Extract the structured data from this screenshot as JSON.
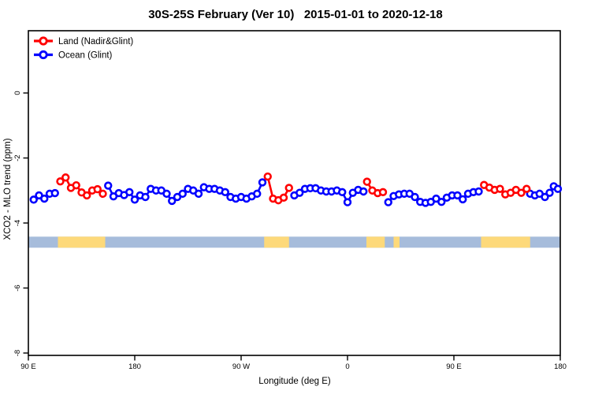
{
  "title": "30S-25S February (Ver 10)   2015-01-01 to 2020-12-18",
  "chart_data": {
    "type": "line",
    "title": "30S-25S February (Ver 10)   2015-01-01 to 2020-12-18",
    "xlabel": "Longitude (deg E)",
    "ylabel": "XCO2 - MLO trend (ppm)",
    "xlim": [
      90,
      540
    ],
    "ylim": [
      -8.2,
      1.9
    ],
    "grid": false,
    "legend_position": "top-left-inside",
    "x_ticks": [
      {
        "pos": 90,
        "label": "90 E"
      },
      {
        "pos": 180,
        "label": "180"
      },
      {
        "pos": 270,
        "label": "90 W"
      },
      {
        "pos": 360,
        "label": "0"
      },
      {
        "pos": 450,
        "label": "90 E"
      },
      {
        "pos": 540,
        "label": "180"
      }
    ],
    "y_ticks": [
      {
        "pos": 0,
        "label": "0"
      },
      {
        "pos": -2,
        "label": "-2"
      },
      {
        "pos": -4,
        "label": "-4"
      },
      {
        "pos": -6,
        "label": "-6"
      },
      {
        "pos": -8,
        "label": "-8"
      }
    ],
    "legend": [
      {
        "name": "Land (Nadir&Glint)",
        "color": "#ff0000"
      },
      {
        "name": "Ocean (Glint)",
        "color": "#0000ff"
      }
    ],
    "land_ocean_band": {
      "y_top": -4.42,
      "y_bottom": -4.76,
      "ocean_color": "#a6bcdb",
      "land_color": "#fdd97a",
      "land_segments_lon": [
        [
          115,
          155
        ],
        [
          289.5,
          310.5
        ],
        [
          376,
          391.5
        ],
        [
          399,
          404
        ],
        [
          473,
          514.5
        ]
      ]
    },
    "series": [
      {
        "name": "Ocean (Glint)",
        "color": "#0000ff",
        "marker": "open-circle",
        "segments": [
          [
            [
              94.5,
              -3.28
            ],
            [
              99,
              -3.15
            ],
            [
              103.5,
              -3.25
            ],
            [
              108,
              -3.1
            ],
            [
              112.5,
              -3.08
            ]
          ],
          [
            [
              157.5,
              -2.85
            ],
            [
              162,
              -3.18
            ],
            [
              166.5,
              -3.08
            ],
            [
              171,
              -3.14
            ],
            [
              175.5,
              -3.05
            ],
            [
              180,
              -3.28
            ],
            [
              184.5,
              -3.15
            ],
            [
              189,
              -3.2
            ],
            [
              193.5,
              -2.95
            ],
            [
              198,
              -3.0
            ],
            [
              202.5,
              -3.0
            ],
            [
              207,
              -3.1
            ],
            [
              211.5,
              -3.32
            ],
            [
              216,
              -3.2
            ],
            [
              220.5,
              -3.1
            ],
            [
              225,
              -2.95
            ],
            [
              229.5,
              -3.0
            ],
            [
              234,
              -3.1
            ],
            [
              238.5,
              -2.9
            ],
            [
              243,
              -2.95
            ],
            [
              247.5,
              -2.95
            ],
            [
              252,
              -3.0
            ],
            [
              256.5,
              -3.05
            ],
            [
              261,
              -3.2
            ],
            [
              265.5,
              -3.25
            ],
            [
              270,
              -3.2
            ],
            [
              274.5,
              -3.25
            ],
            [
              279,
              -3.18
            ],
            [
              283.5,
              -3.1
            ],
            [
              288,
              -2.75
            ]
          ],
          [
            [
              315,
              -3.15
            ],
            [
              319.5,
              -3.07
            ],
            [
              324,
              -2.95
            ],
            [
              328.5,
              -2.93
            ],
            [
              333,
              -2.93
            ],
            [
              337.5,
              -3.0
            ],
            [
              342,
              -3.03
            ],
            [
              346.5,
              -3.03
            ],
            [
              351,
              -3.0
            ],
            [
              355.5,
              -3.05
            ],
            [
              360,
              -3.36
            ],
            [
              364.5,
              -3.07
            ],
            [
              369,
              -2.98
            ],
            [
              373.5,
              -3.03
            ]
          ],
          [
            [
              394.5,
              -3.36
            ],
            [
              399,
              -3.17
            ],
            [
              403.5,
              -3.12
            ],
            [
              408,
              -3.1
            ],
            [
              412.5,
              -3.1
            ],
            [
              417,
              -3.2
            ],
            [
              421.5,
              -3.35
            ],
            [
              426,
              -3.38
            ],
            [
              430.5,
              -3.35
            ],
            [
              435,
              -3.25
            ],
            [
              439.5,
              -3.35
            ],
            [
              444,
              -3.22
            ],
            [
              448.5,
              -3.15
            ],
            [
              453,
              -3.15
            ],
            [
              457.5,
              -3.27
            ],
            [
              462,
              -3.1
            ],
            [
              466.5,
              -3.05
            ],
            [
              471,
              -3.03
            ]
          ],
          [
            [
              514.5,
              -3.1
            ],
            [
              518.5,
              -3.15
            ],
            [
              522.5,
              -3.1
            ],
            [
              527,
              -3.2
            ],
            [
              531,
              -3.07
            ],
            [
              534.5,
              -2.87
            ],
            [
              538,
              -2.95
            ]
          ]
        ]
      },
      {
        "name": "Land (Nadir&Glint)",
        "color": "#ff0000",
        "marker": "open-circle",
        "segments": [
          [
            [
              117,
              -2.72
            ],
            [
              121.5,
              -2.6
            ],
            [
              126,
              -2.92
            ],
            [
              130.5,
              -2.84
            ],
            [
              135,
              -3.06
            ],
            [
              139.5,
              -3.15
            ],
            [
              144,
              -3.0
            ],
            [
              148.5,
              -2.96
            ],
            [
              153,
              -3.1
            ]
          ],
          [
            [
              292.5,
              -2.57
            ],
            [
              297,
              -3.25
            ],
            [
              301.5,
              -3.3
            ],
            [
              306,
              -3.22
            ],
            [
              310.5,
              -2.92
            ]
          ],
          [
            [
              376.5,
              -2.73
            ],
            [
              381,
              -3.0
            ],
            [
              385.5,
              -3.08
            ],
            [
              390,
              -3.05
            ]
          ],
          [
            [
              475.5,
              -2.83
            ],
            [
              480,
              -2.91
            ],
            [
              484.5,
              -2.98
            ],
            [
              489,
              -2.95
            ],
            [
              493.5,
              -3.12
            ],
            [
              498,
              -3.07
            ],
            [
              502.5,
              -2.98
            ],
            [
              507,
              -3.07
            ],
            [
              511.5,
              -2.95
            ]
          ]
        ]
      }
    ]
  }
}
